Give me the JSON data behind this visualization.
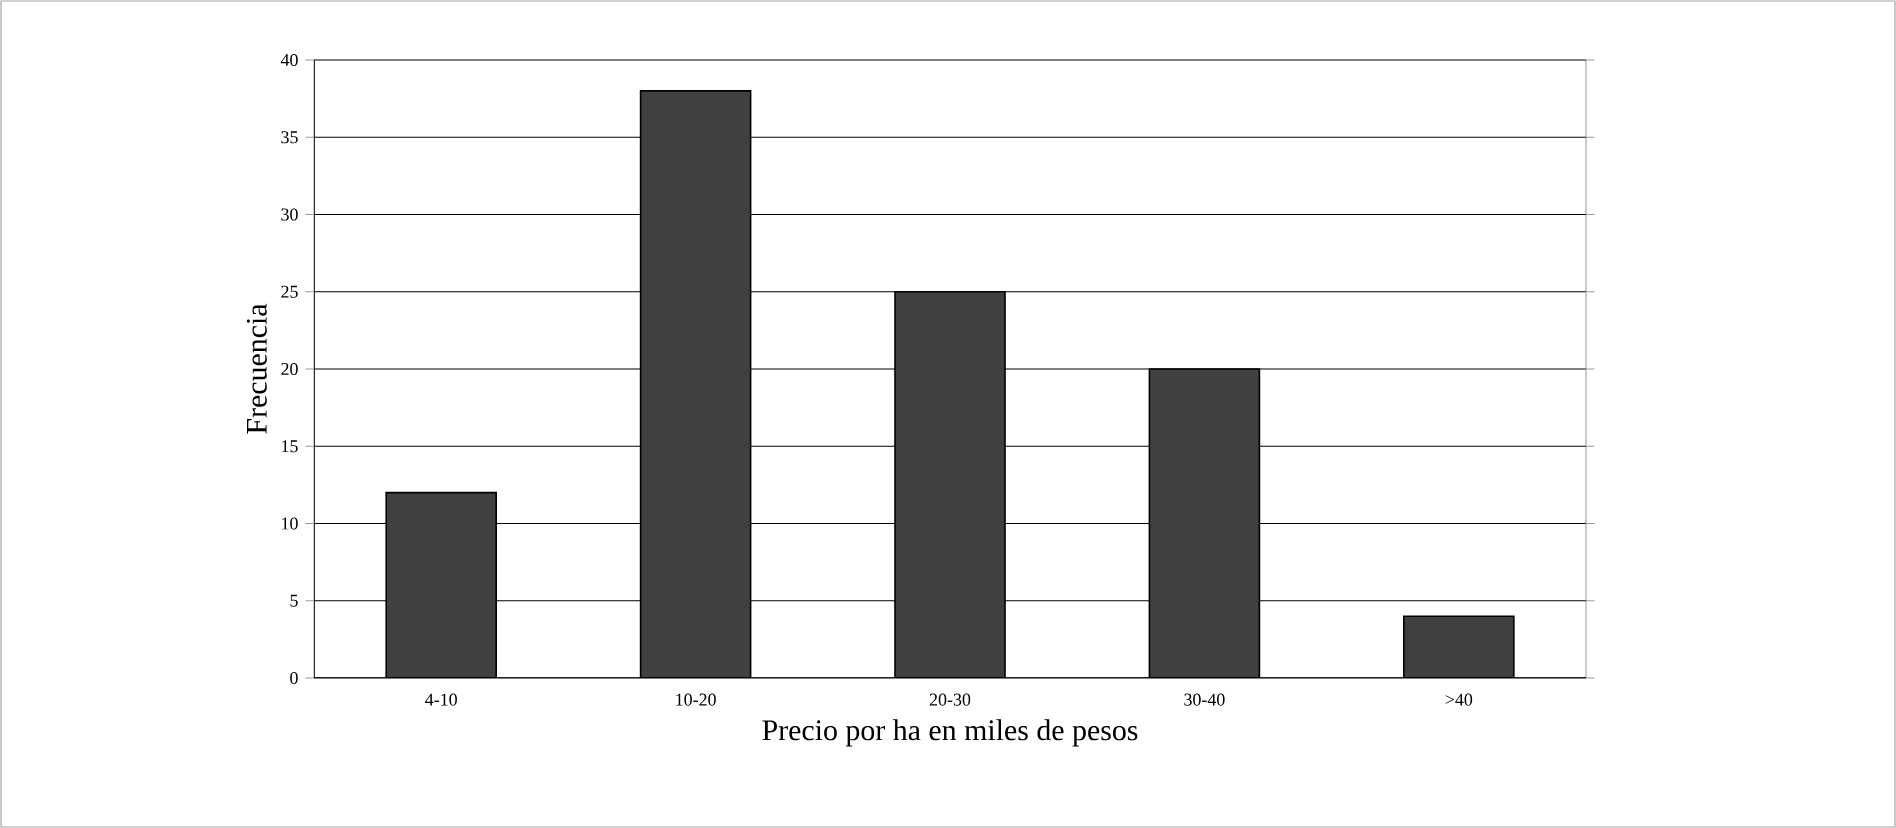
{
  "chart_data": {
    "type": "bar",
    "xlabel": "Precio por ha en miles de pesos",
    "ylabel": "Frecuencia",
    "categories": [
      "4-10",
      "10-20",
      "20-30",
      "30-40",
      ">40"
    ],
    "values": [
      12,
      38,
      25,
      20,
      4
    ],
    "color": "#404040",
    "ylim": [
      0,
      40
    ],
    "yticks": [
      0,
      5,
      10,
      15,
      20,
      25,
      30,
      35,
      40
    ],
    "grid": "y"
  }
}
